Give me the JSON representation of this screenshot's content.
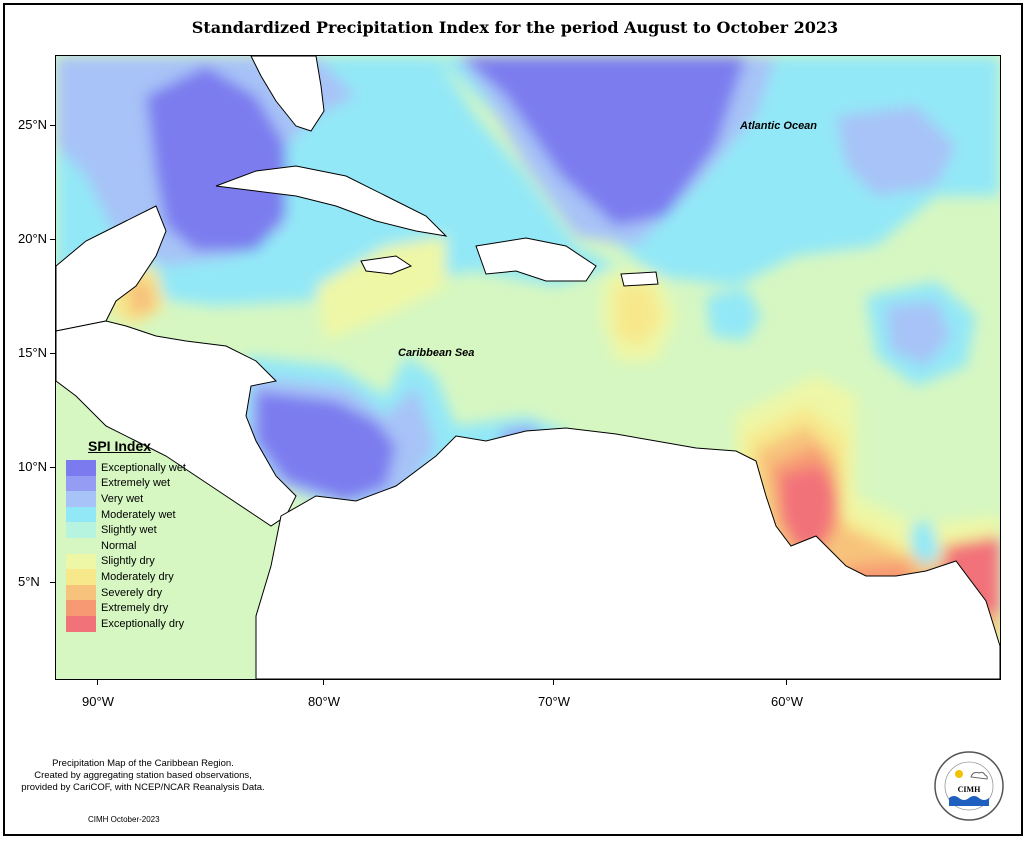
{
  "title": "Standardized Precipitation Index for the period August to October 2023",
  "axes": {
    "y_ticks": [
      "25°N",
      "20°N",
      "15°N",
      "10°N",
      "5°N"
    ],
    "x_ticks": [
      "90°W",
      "80°W",
      "70°W",
      "60°W"
    ]
  },
  "labels": {
    "atlantic": "Atlantic Ocean",
    "caribbean": "Caribbean Sea"
  },
  "legend": {
    "title": "SPI Index",
    "items": [
      {
        "label": "Exceptionally wet",
        "color": "#7b7bef"
      },
      {
        "label": "Extremely wet",
        "color": "#949cf4"
      },
      {
        "label": "Very wet",
        "color": "#a7c3f7"
      },
      {
        "label": "Moderately wet",
        "color": "#93e8f7"
      },
      {
        "label": "Slightly wet",
        "color": "#b6f4e0"
      },
      {
        "label": "Normal",
        "color": "#d6f7c2"
      },
      {
        "label": "Slightly dry",
        "color": "#eef7a6"
      },
      {
        "label": "Moderately dry",
        "color": "#f7e88c"
      },
      {
        "label": "Severely dry",
        "color": "#f7c27b"
      },
      {
        "label": "Extremely dry",
        "color": "#f79a73"
      },
      {
        "label": "Exceptionally dry",
        "color": "#f2727a"
      }
    ]
  },
  "credits": {
    "line1": "Precipitation Map of the Caribbean Region.",
    "line2": "Created by aggregating station based observations,",
    "line3": "provided by CariCOF, with NCEP/NCAR Reanalysis Data.",
    "date": "CIMH October-2023"
  },
  "logo": {
    "text": "CIMH"
  }
}
